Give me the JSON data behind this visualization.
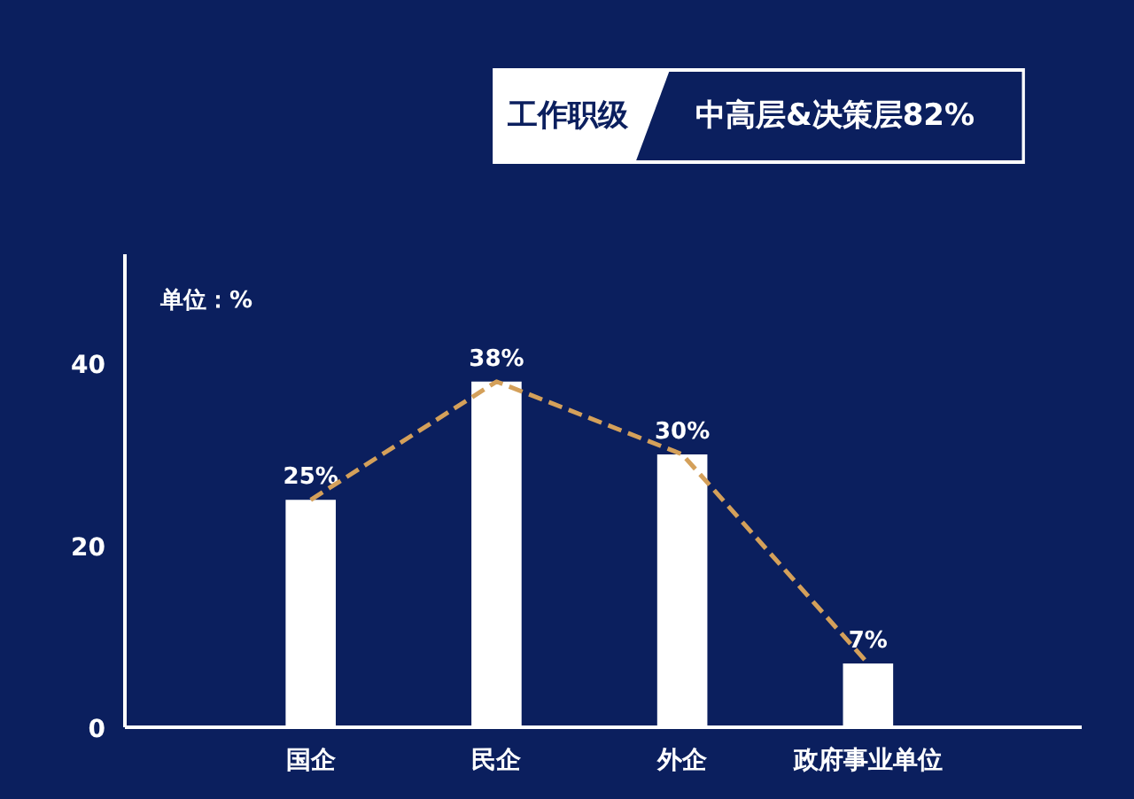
{
  "chart_data": {
    "type": "bar",
    "title": "工作职级",
    "subtitle": "中高层&决策层82%",
    "ylabel": "单位：%",
    "categories": [
      "国企",
      "民企",
      "外企",
      "政府事业单位"
    ],
    "series": [
      {
        "color": "#ffffff",
        "values": [
          25,
          38,
          30,
          7
        ],
        "value_labels": [
          "25%",
          "38%",
          "30%",
          "7%"
        ]
      },
      {
        "type": "line",
        "color": "#d4a05a",
        "values": [
          25,
          38,
          30,
          7
        ]
      }
    ],
    "ylim": [
      0,
      52
    ],
    "yticks": [
      0,
      20,
      40
    ],
    "line_style": "dashed"
  }
}
